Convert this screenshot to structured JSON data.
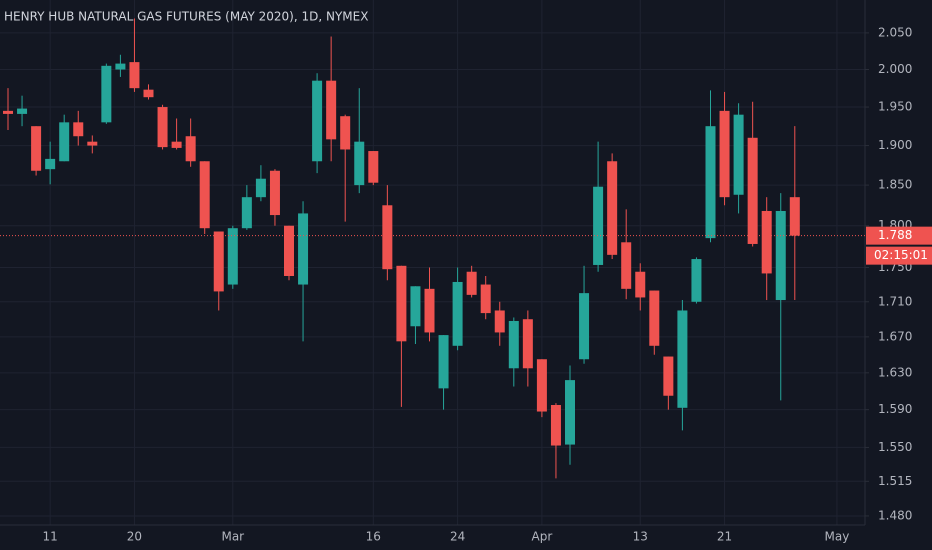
{
  "chart_data": {
    "type": "candlestick",
    "title": "HENRY HUB NATURAL GAS FUTURES (MAY 2020), 1D, NYMEX",
    "categories": [
      null,
      null,
      null,
      "11",
      null,
      null,
      null,
      null,
      null,
      "20",
      null,
      null,
      null,
      null,
      null,
      null,
      "Mar",
      null,
      null,
      null,
      null,
      null,
      null,
      null,
      null,
      null,
      "16",
      null,
      null,
      null,
      null,
      null,
      "24",
      null,
      null,
      null,
      null,
      null,
      "Apr",
      null,
      null,
      null,
      null,
      null,
      null,
      "13",
      null,
      null,
      null,
      null,
      null,
      "21",
      null,
      null,
      null,
      null,
      null,
      null,
      null,
      "May"
    ],
    "open": [
      1.945,
      1.941,
      1.925,
      1.87,
      1.88,
      1.93,
      1.905,
      1.93,
      2.0,
      2.01,
      1.973,
      1.95,
      1.905,
      1.912,
      1.88,
      1.793,
      1.73,
      1.797,
      1.835,
      1.868,
      1.8,
      1.73,
      1.88,
      1.985,
      1.938,
      1.85,
      1.893,
      1.825,
      1.752,
      1.682,
      1.725,
      1.613,
      1.66,
      1.745,
      1.73,
      1.7,
      1.635,
      1.69,
      1.645,
      1.595,
      1.553,
      1.645,
      1.753,
      1.88,
      1.78,
      1.745,
      1.723,
      1.648,
      1.592,
      1.71,
      1.785,
      1.945,
      1.838,
      1.91,
      1.818,
      1.712,
      1.835,
      null,
      null,
      null
    ],
    "high": [
      1.975,
      1.965,
      1.925,
      1.905,
      1.94,
      1.945,
      1.913,
      2.008,
      2.02,
      2.07,
      1.98,
      1.953,
      1.935,
      1.935,
      1.88,
      1.793,
      1.8,
      1.85,
      1.875,
      1.87,
      1.8,
      1.83,
      1.995,
      2.045,
      1.94,
      1.975,
      1.893,
      1.85,
      1.752,
      1.728,
      1.75,
      1.672,
      1.75,
      1.752,
      1.74,
      1.71,
      1.692,
      1.7,
      1.645,
      1.597,
      1.638,
      1.752,
      1.905,
      1.89,
      1.82,
      1.755,
      1.723,
      1.648,
      1.712,
      1.762,
      1.972,
      1.97,
      1.955,
      1.957,
      1.835,
      1.84,
      1.925,
      null,
      null,
      null
    ],
    "low": [
      1.92,
      1.925,
      1.862,
      1.851,
      1.88,
      1.9,
      1.89,
      1.928,
      1.99,
      1.97,
      1.96,
      1.895,
      1.895,
      1.873,
      1.79,
      1.7,
      1.725,
      1.795,
      1.83,
      1.8,
      1.735,
      1.665,
      1.865,
      1.88,
      1.805,
      1.84,
      1.85,
      1.735,
      1.593,
      1.662,
      1.665,
      1.59,
      1.655,
      1.715,
      1.69,
      1.66,
      1.615,
      1.615,
      1.582,
      1.518,
      1.532,
      1.64,
      1.745,
      1.76,
      1.713,
      1.7,
      1.65,
      1.59,
      1.568,
      1.708,
      1.78,
      1.825,
      1.815,
      1.775,
      1.712,
      1.6,
      1.712,
      null,
      null,
      null
    ],
    "close": [
      1.941,
      1.948,
      1.868,
      1.883,
      1.93,
      1.912,
      1.9,
      2.005,
      2.008,
      1.975,
      1.963,
      1.898,
      1.897,
      1.88,
      1.797,
      1.722,
      1.797,
      1.835,
      1.858,
      1.813,
      1.74,
      1.815,
      1.985,
      1.908,
      1.895,
      1.905,
      1.853,
      1.748,
      1.665,
      1.728,
      1.675,
      1.672,
      1.733,
      1.718,
      1.697,
      1.675,
      1.688,
      1.635,
      1.588,
      1.552,
      1.622,
      1.72,
      1.848,
      1.765,
      1.725,
      1.715,
      1.66,
      1.605,
      1.7,
      1.76,
      1.925,
      1.835,
      1.94,
      1.778,
      1.743,
      1.818,
      1.788,
      null,
      null,
      null
    ],
    "up_color": "#26a69a",
    "down_color": "#ef5350",
    "ylim": [
      1.471,
      2.096
    ],
    "log_scale": true,
    "yticks": [
      {
        "value": 2.05,
        "label": "2.050"
      },
      {
        "value": 2.0,
        "label": "2.000"
      },
      {
        "value": 1.95,
        "label": "1.950"
      },
      {
        "value": 1.9,
        "label": "1.900"
      },
      {
        "value": 1.85,
        "label": "1.850"
      },
      {
        "value": 1.8,
        "label": "1.800"
      },
      {
        "value": 1.75,
        "label": "1.750"
      },
      {
        "value": 1.71,
        "label": "1.710"
      },
      {
        "value": 1.67,
        "label": "1.670"
      },
      {
        "value": 1.63,
        "label": "1.630"
      },
      {
        "value": 1.59,
        "label": "1.590"
      },
      {
        "value": 1.55,
        "label": "1.550"
      },
      {
        "value": 1.515,
        "label": "1.515"
      },
      {
        "value": 1.48,
        "label": "1.480"
      }
    ],
    "grid": true,
    "last_price": 1.788,
    "countdown": "02:15:01"
  }
}
